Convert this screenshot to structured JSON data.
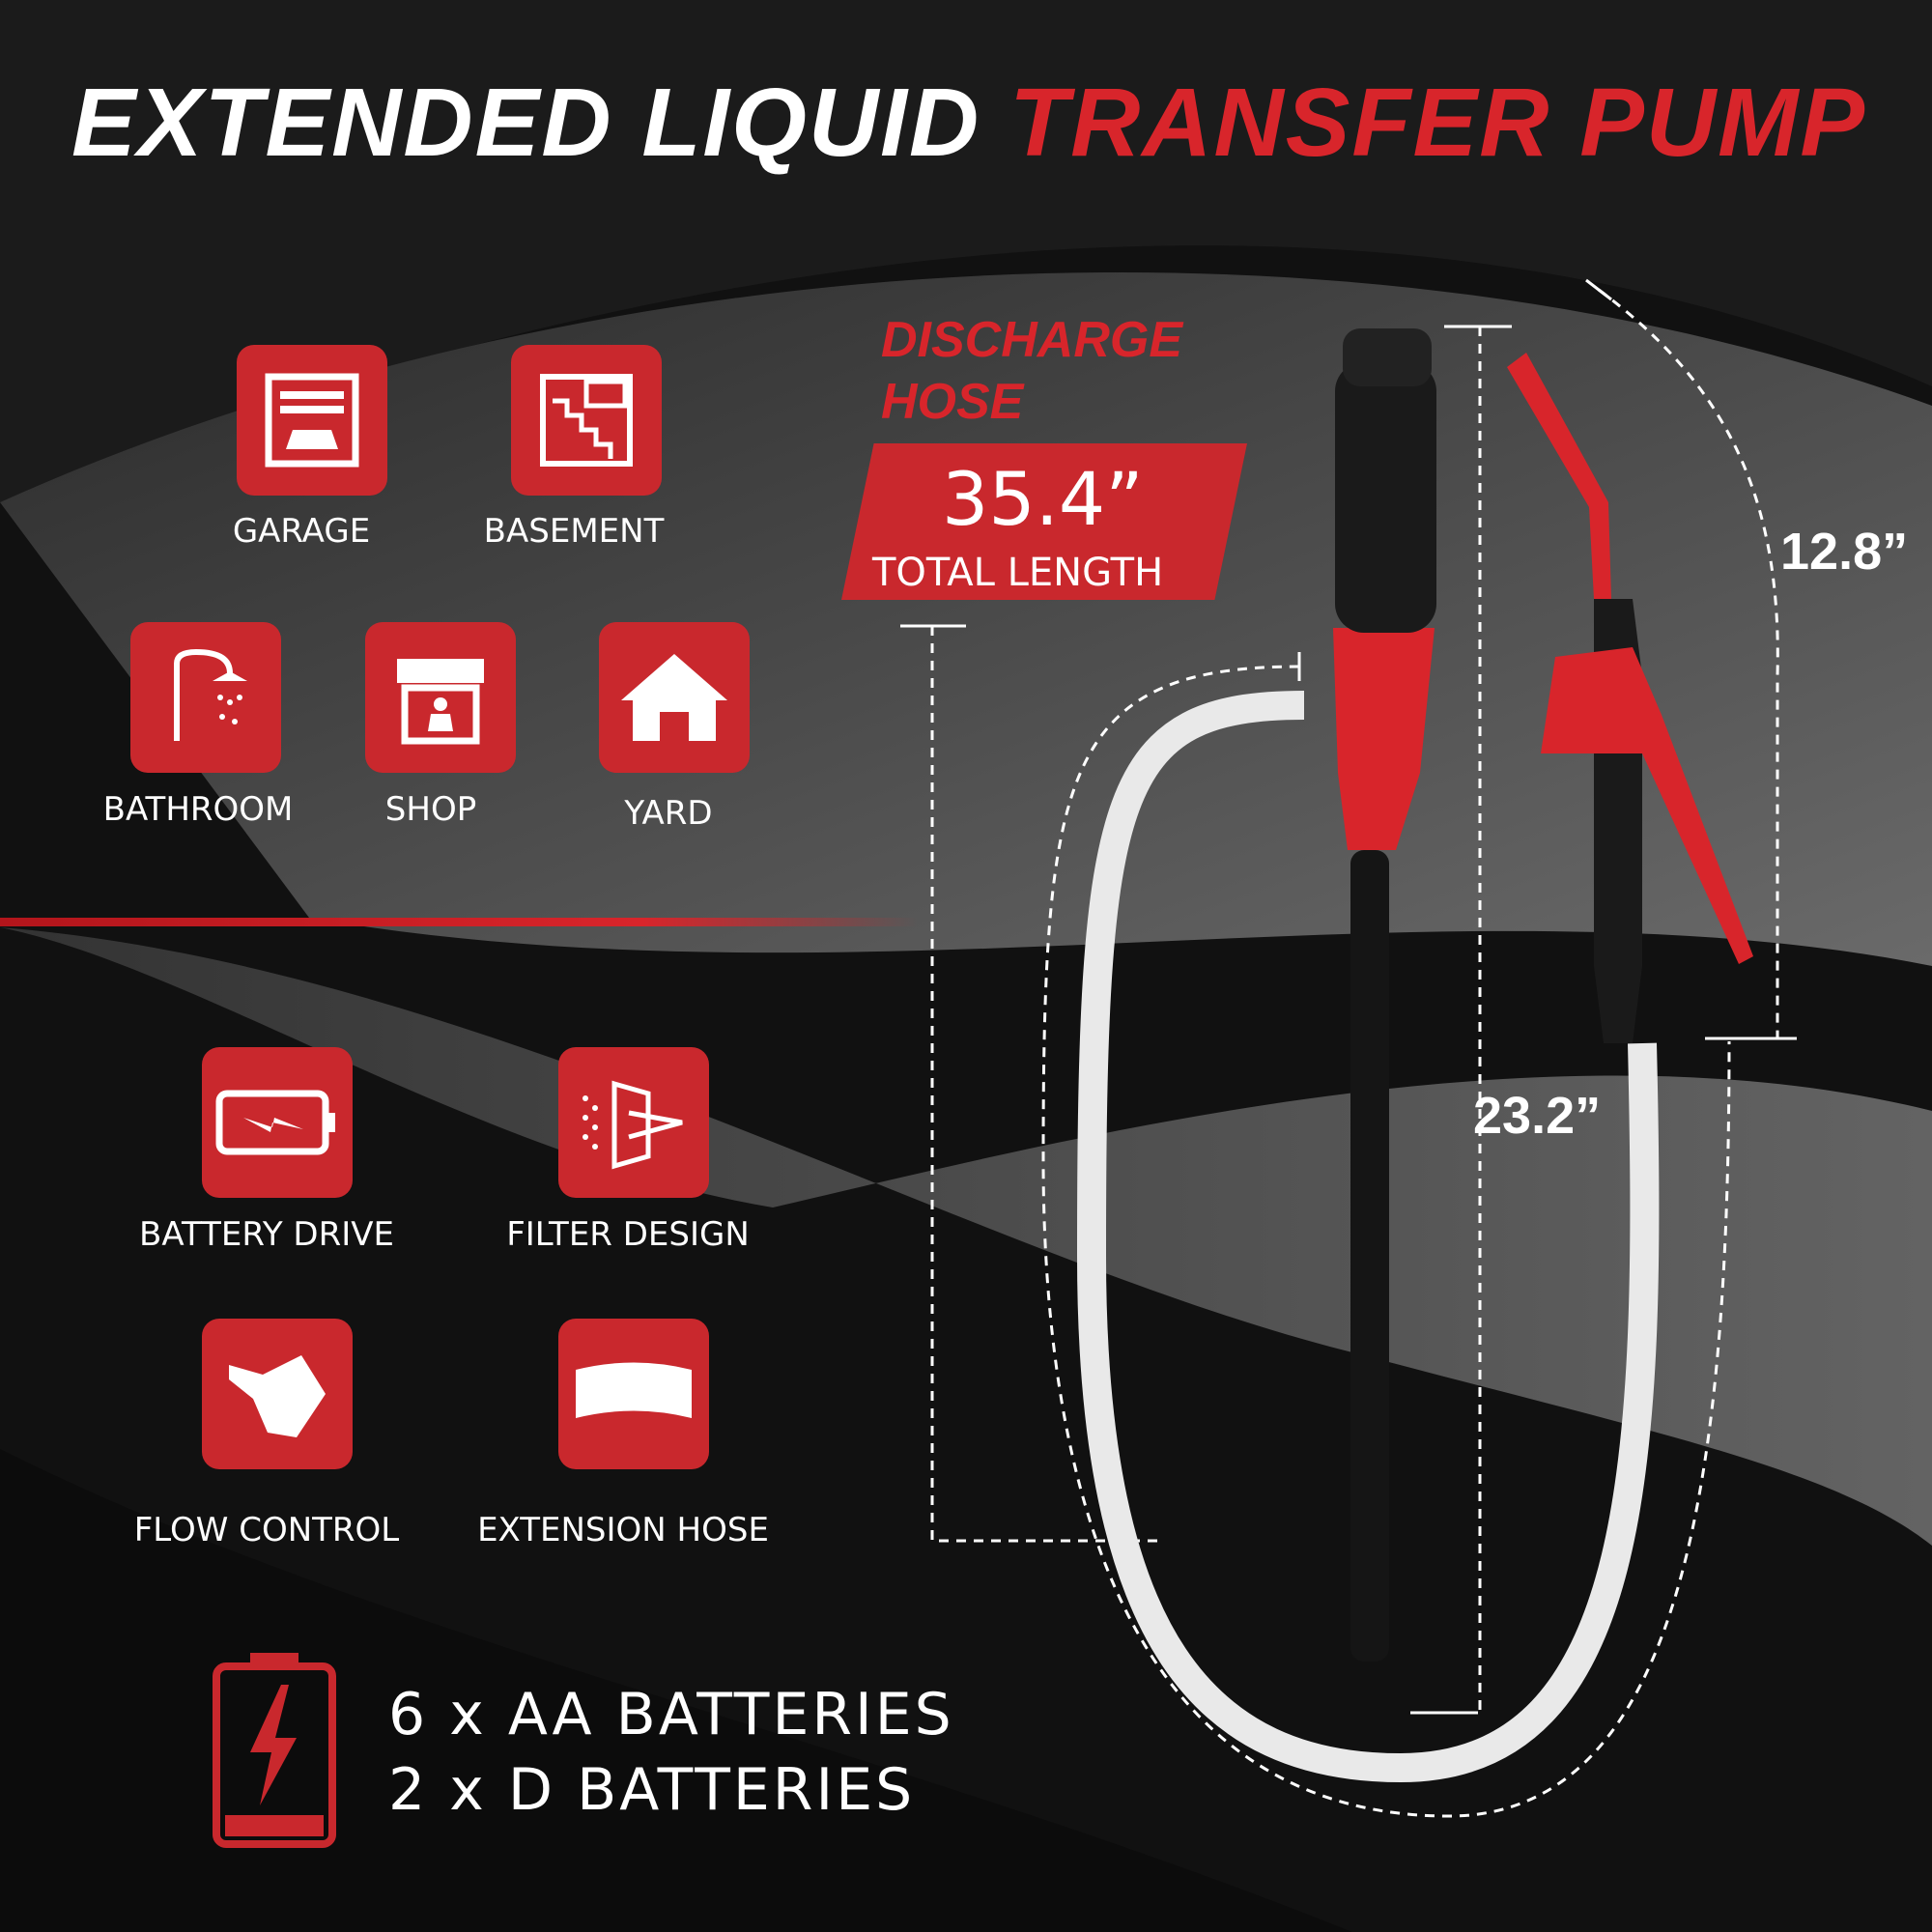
{
  "title": {
    "part1": "EXTENDED LIQUID",
    "part2": "TRANSFER PUMP"
  },
  "uses": [
    {
      "label": "GARAGE",
      "icon": "garage-icon"
    },
    {
      "label": "BASEMENT",
      "icon": "basement-icon"
    },
    {
      "label": "BATHROOM",
      "icon": "shower-icon"
    },
    {
      "label": "SHOP",
      "icon": "shop-icon"
    },
    {
      "label": "YARD",
      "icon": "house-icon"
    }
  ],
  "features": [
    {
      "label": "BATTERY DRIVE",
      "icon": "battery-icon"
    },
    {
      "label": "FILTER DESIGN",
      "icon": "filter-icon"
    },
    {
      "label": "FLOW CONTROL",
      "icon": "hand-nozzle-icon"
    },
    {
      "label": "EXTENSION HOSE",
      "icon": "hose-icon"
    }
  ],
  "batteries": {
    "line1": "6 x AA BATTERIES",
    "line2": "2 x D BATTERIES"
  },
  "discharge": {
    "label_line1": "DISCHARGE",
    "label_line2": "HOSE",
    "length": "35.4”",
    "length_label": "TOTAL LENGTH"
  },
  "dimensions": {
    "nozzle": "12.8”",
    "tube": "23.2”"
  },
  "colors": {
    "accent": "#c9282d",
    "background": "#111111"
  }
}
